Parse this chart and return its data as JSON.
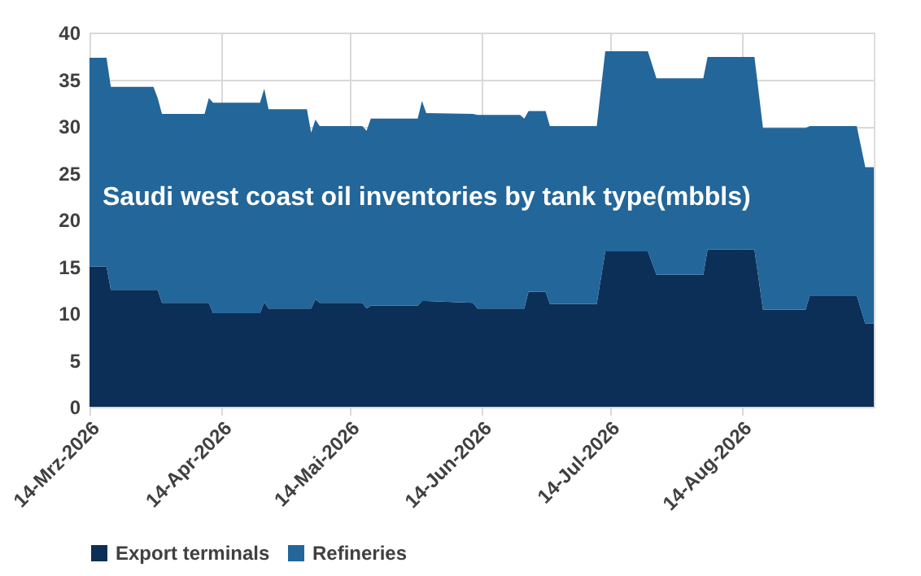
{
  "chart_data": {
    "type": "area",
    "stacked": true,
    "title": "Saudi west coast oil inventories by tank type(mbbls)",
    "x": [
      "2026-03-14",
      "2026-03-18",
      "2026-03-19",
      "2026-03-29",
      "2026-03-30",
      "2026-03-31",
      "2026-04-10",
      "2026-04-11",
      "2026-04-12",
      "2026-04-23",
      "2026-04-24",
      "2026-04-25",
      "2026-05-04",
      "2026-05-05",
      "2026-05-06",
      "2026-05-07",
      "2026-05-17",
      "2026-05-18",
      "2026-05-19",
      "2026-05-30",
      "2026-05-31",
      "2026-06-01",
      "2026-06-12",
      "2026-06-13",
      "2026-06-23",
      "2026-06-24",
      "2026-06-25",
      "2026-06-29",
      "2026-06-30",
      "2026-07-11",
      "2026-07-13",
      "2026-07-23",
      "2026-07-25",
      "2026-08-05",
      "2026-08-06",
      "2026-08-17",
      "2026-08-19",
      "2026-08-29",
      "2026-08-30",
      "2026-09-10",
      "2026-09-12",
      "2026-09-14"
    ],
    "series": [
      {
        "name": "Export terminals",
        "color": "#0c2f58",
        "values": [
          15,
          15,
          12.5,
          12.5,
          12.5,
          11.1,
          11.1,
          11.1,
          10.0,
          10.0,
          11.2,
          10.5,
          10.5,
          10.5,
          11.5,
          11.1,
          11.1,
          10.5,
          10.8,
          10.8,
          11.3,
          11.3,
          11.1,
          10.5,
          10.5,
          10.5,
          12.3,
          12.3,
          11,
          11,
          16.6,
          16.6,
          14.1,
          14.1,
          16.8,
          16.8,
          10.4,
          10.4,
          11.9,
          11.9,
          8.9,
          8.9
        ]
      },
      {
        "name": "Refineries",
        "color": "#236699",
        "values": [
          22.3,
          22.3,
          21.7,
          21.7,
          20.5,
          20.2,
          20.2,
          21.9,
          22.5,
          22.5,
          22.8,
          21.3,
          21.3,
          18.8,
          19.2,
          18.9,
          18.9,
          19.0,
          20.0,
          20.0,
          21.4,
          20.1,
          20.2,
          20.7,
          20.7,
          20.3,
          19.3,
          19.3,
          19,
          19,
          21.4,
          21.4,
          21.0,
          21.0,
          20.6,
          20.6,
          19.4,
          19.4,
          18.1,
          18.1,
          16.7,
          16.7
        ]
      }
    ],
    "xlim": [
      "2026-03-14",
      "2026-09-14"
    ],
    "xticks": [
      {
        "value": "2026-03-14",
        "label": "14-Mrz-2026"
      },
      {
        "value": "2026-04-14",
        "label": "14-Apr-2026"
      },
      {
        "value": "2026-05-14",
        "label": "14-Mai-2026"
      },
      {
        "value": "2026-06-14",
        "label": "14-Jun-2026"
      },
      {
        "value": "2026-07-14",
        "label": "14-Jul-2026"
      },
      {
        "value": "2026-08-14",
        "label": "14-Aug-2026"
      }
    ],
    "ylim": [
      0,
      40
    ],
    "yticks": [
      0,
      5,
      10,
      15,
      20,
      25,
      30,
      35,
      40
    ],
    "grid": true,
    "legend": "bottom"
  }
}
